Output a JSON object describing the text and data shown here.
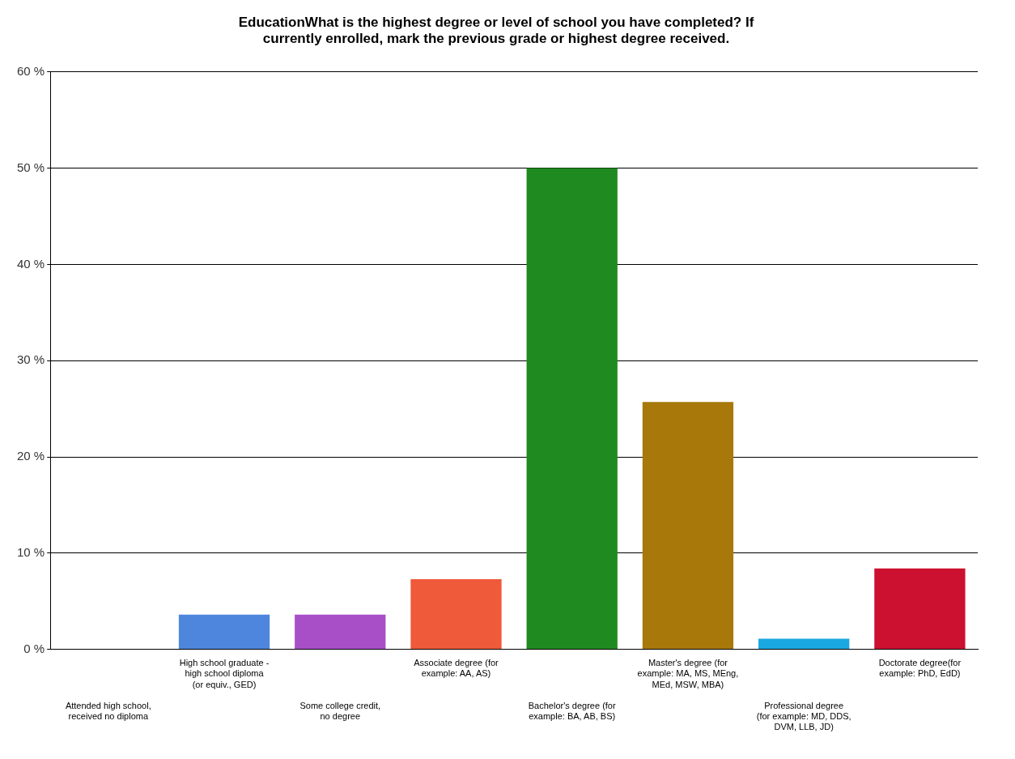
{
  "chart_data": {
    "type": "bar",
    "title": "EducationWhat is the highest degree or level of school you have completed? If currently enrolled, mark the previous grade or highest degree received.",
    "categories": [
      "Attended high school, received no diploma",
      "High school graduate - high school diploma (or equiv., GED)",
      "Some college credit, no degree",
      "Associate degree (for example: AA, AS)",
      "Bachelor's degree (for example: BA, AB, BS)",
      "Master's degree (for example: MA, MS, MEng, MEd, MSW, MBA)",
      "Professional degree (for example: MD, DDS, DVM, LLB, JD)",
      "Doctorate degree(for example: PhD, EdD)"
    ],
    "values": [
      0,
      3.6,
      3.6,
      7.3,
      50,
      25.7,
      1.1,
      8.4
    ],
    "colors": [
      "#4f86dd",
      "#4f86dd",
      "#a84fc8",
      "#ee5a3a",
      "#1f8a1f",
      "#a8780a",
      "#1aa8e0",
      "#cc1030"
    ],
    "ylim": [
      0,
      60
    ],
    "yticks": [
      {
        "value": 0,
        "label": "0 %"
      },
      {
        "value": 10,
        "label": "10 %"
      },
      {
        "value": 20,
        "label": "20 %"
      },
      {
        "value": 30,
        "label": "30 %"
      },
      {
        "value": 40,
        "label": "40 %"
      },
      {
        "value": 50,
        "label": "50 %"
      },
      {
        "value": 60,
        "label": "60 %"
      }
    ],
    "grid": "y",
    "legend": false
  }
}
